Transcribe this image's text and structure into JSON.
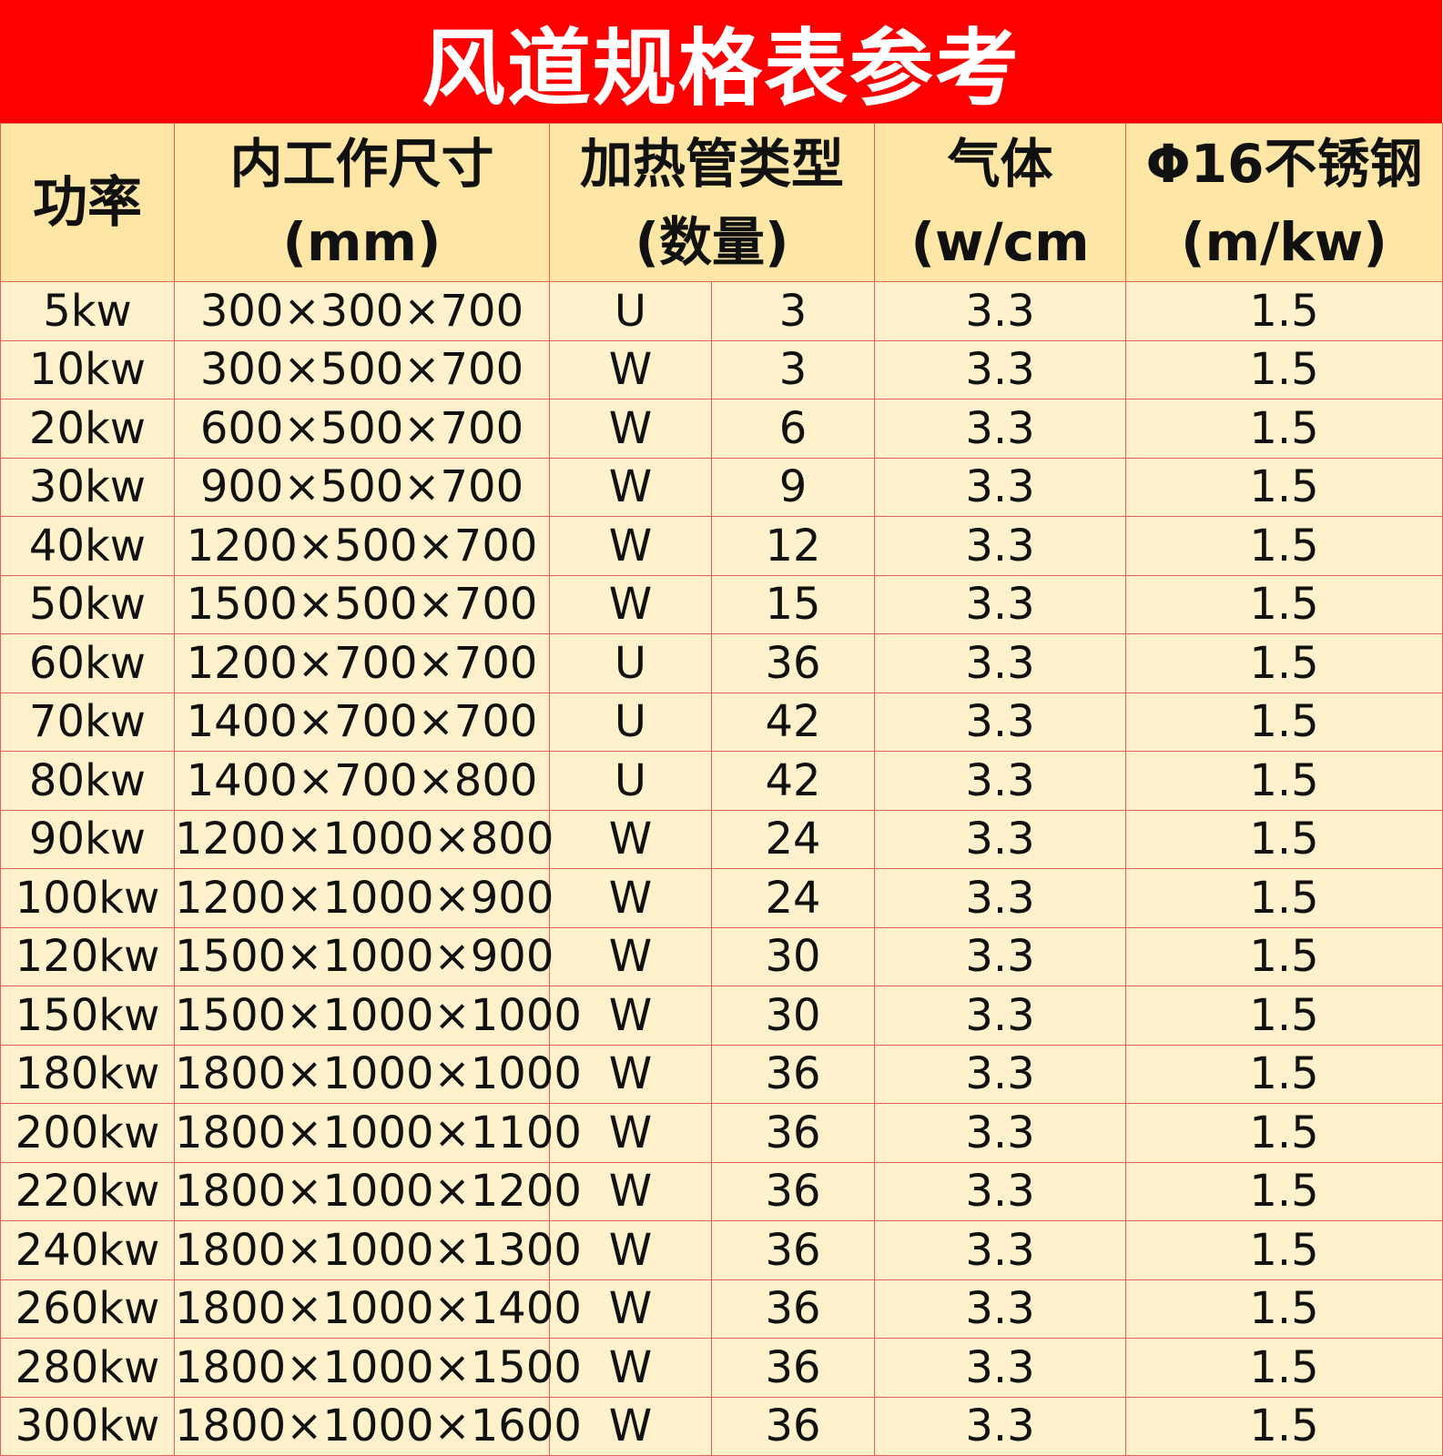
{
  "title": "风道规格表参考",
  "headers": {
    "power": "功率",
    "size_l1": "内工作尺寸",
    "size_l2": "(mm)",
    "tube_l1": "加热管类型",
    "tube_l2": "(数量)",
    "gas_l1": "气体",
    "gas_l2": "(w/cm",
    "steel_l1": "Φ16不锈钢",
    "steel_l2": "(m/kw)"
  },
  "rows": [
    [
      "5kw",
      "300×300×700",
      "U",
      "3",
      "3.3",
      "1.5"
    ],
    [
      "10kw",
      "300×500×700",
      "W",
      "3",
      "3.3",
      "1.5"
    ],
    [
      "20kw",
      "600×500×700",
      "W",
      "6",
      "3.3",
      "1.5"
    ],
    [
      "30kw",
      "900×500×700",
      "W",
      "9",
      "3.3",
      "1.5"
    ],
    [
      "40kw",
      "1200×500×700",
      "W",
      "12",
      "3.3",
      "1.5"
    ],
    [
      "50kw",
      "1500×500×700",
      "W",
      "15",
      "3.3",
      "1.5"
    ],
    [
      "60kw",
      "1200×700×700",
      "U",
      "36",
      "3.3",
      "1.5"
    ],
    [
      "70kw",
      "1400×700×700",
      "U",
      "42",
      "3.3",
      "1.5"
    ],
    [
      "80kw",
      "1400×700×800",
      "U",
      "42",
      "3.3",
      "1.5"
    ],
    [
      "90kw",
      "1200×1000×800",
      "W",
      "24",
      "3.3",
      "1.5"
    ],
    [
      "100kw",
      "1200×1000×900",
      "W",
      "24",
      "3.3",
      "1.5"
    ],
    [
      "120kw",
      "1500×1000×900",
      "W",
      "30",
      "3.3",
      "1.5"
    ],
    [
      "150kw",
      "1500×1000×1000",
      "W",
      "30",
      "3.3",
      "1.5"
    ],
    [
      "180kw",
      "1800×1000×1000",
      "W",
      "36",
      "3.3",
      "1.5"
    ],
    [
      "200kw",
      "1800×1000×1100",
      "W",
      "36",
      "3.3",
      "1.5"
    ],
    [
      "220kw",
      "1800×1000×1200",
      "W",
      "36",
      "3.3",
      "1.5"
    ],
    [
      "240kw",
      "1800×1000×1300",
      "W",
      "36",
      "3.3",
      "1.5"
    ],
    [
      "260kw",
      "1800×1000×1400",
      "W",
      "36",
      "3.3",
      "1.5"
    ],
    [
      "280kw",
      "1800×1000×1500",
      "W",
      "36",
      "3.3",
      "1.5"
    ],
    [
      "300kw",
      "1800×1000×1600",
      "W",
      "36",
      "3.3",
      "1.5"
    ]
  ],
  "colors": {
    "title_bg": "#fe0000",
    "header_bg": "#fde6a6",
    "row_bg": "#fff1cc",
    "border": "#e0605a"
  }
}
